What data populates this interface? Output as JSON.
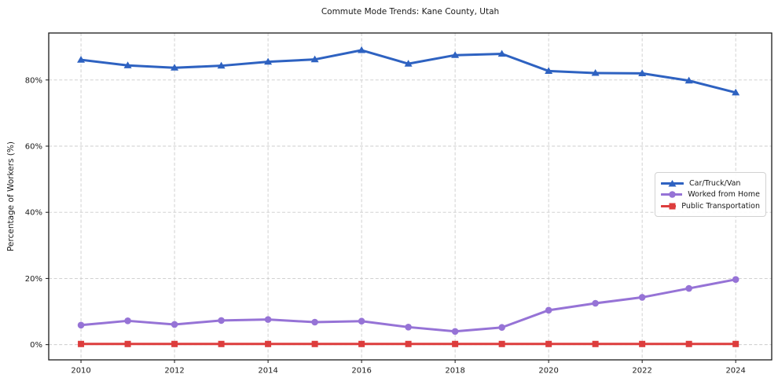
{
  "chart_data": {
    "type": "line",
    "title": "Commute Mode Trends: Kane County, Utah",
    "xlabel": "",
    "ylabel": "Percentage of Workers (%)",
    "x": [
      2010,
      2011,
      2012,
      2013,
      2014,
      2015,
      2016,
      2017,
      2018,
      2019,
      2020,
      2021,
      2022,
      2023,
      2024
    ],
    "series": [
      {
        "name": "Car/Truck/Van",
        "color": "#2e62c1",
        "marker": "triangle",
        "values": [
          86.1,
          84.4,
          83.7,
          84.3,
          85.5,
          86.2,
          89.0,
          84.9,
          87.5,
          87.9,
          82.7,
          82.1,
          82.0,
          79.8,
          76.2
        ]
      },
      {
        "name": "Worked from Home",
        "color": "#9673d6",
        "marker": "circle",
        "values": [
          5.9,
          7.2,
          6.1,
          7.3,
          7.6,
          6.8,
          7.1,
          5.3,
          4.0,
          5.2,
          10.4,
          12.5,
          14.3,
          17.0,
          19.7
        ]
      },
      {
        "name": "Public Transportation",
        "color": "#dd3d3d",
        "marker": "square",
        "values": [
          0.2,
          0.2,
          0.2,
          0.2,
          0.2,
          0.2,
          0.2,
          0.2,
          0.2,
          0.2,
          0.2,
          0.2,
          0.2,
          0.2,
          0.2
        ]
      }
    ],
    "xticks": [
      2010,
      2012,
      2014,
      2016,
      2018,
      2020,
      2022,
      2024
    ],
    "xticklabels": [
      "2010",
      "2012",
      "2014",
      "2016",
      "2018",
      "2020",
      "2022",
      "2024"
    ],
    "yticks": [
      0,
      20,
      40,
      60,
      80
    ],
    "yticklabels": [
      "0%",
      "20%",
      "40%",
      "60%",
      "80%"
    ],
    "xlim": [
      2009.31,
      2024.77
    ],
    "ylim": [
      -4.6,
      94.2
    ],
    "grid": true,
    "legend_position": "center right",
    "colors": {
      "grid": "#cccccc",
      "axis_border": "#1a1a1a",
      "background": "#ffffff"
    }
  }
}
